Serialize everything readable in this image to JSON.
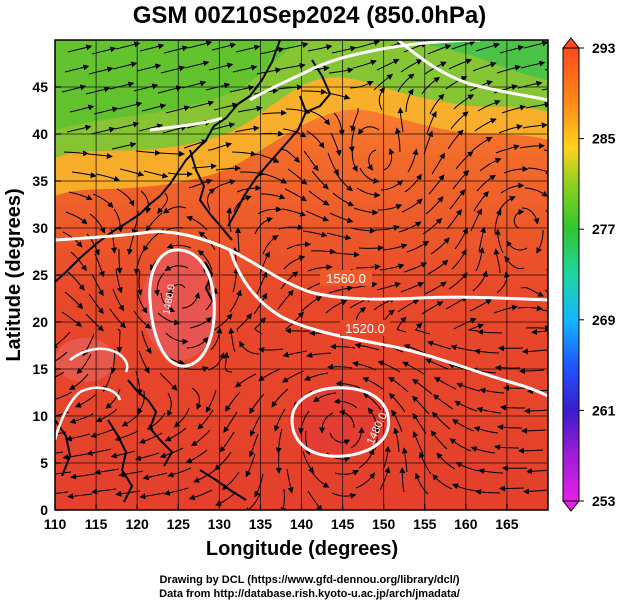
{
  "title": "GSM 00Z10Sep2024 (850.0hPa)",
  "map": {
    "x_axis_label": "Longitude (degrees)",
    "y_axis_label": "Latitude  (degrees)",
    "x_range": [
      110,
      170
    ],
    "y_range": [
      0,
      50
    ],
    "x_ticks": [
      "110",
      "115",
      "120",
      "125",
      "130",
      "135",
      "140",
      "145",
      "150",
      "155",
      "160",
      "165"
    ],
    "y_ticks": [
      "0",
      "5",
      "10",
      "15",
      "20",
      "25",
      "30",
      "35",
      "40",
      "45"
    ],
    "grid": true,
    "contour_labels": [
      "1560.0",
      "1520.0",
      "1480.0",
      "1480.0"
    ],
    "field": "temperature",
    "overlays": [
      "geopotential height contours",
      "wind streamlines",
      "coastlines"
    ]
  },
  "colorbar": {
    "ticks": [
      "293",
      "285",
      "277",
      "269",
      "261",
      "253"
    ],
    "range": [
      253,
      293
    ],
    "colors": [
      "#e81fe8",
      "#3a1ccc",
      "#1f57ff",
      "#13b8ff",
      "#1fd6a2",
      "#2fc62f",
      "#8fd11f",
      "#ffd21c",
      "#ff8a1a",
      "#ff4a1a",
      "#e23a32"
    ]
  },
  "credits": {
    "line1": "Drawing by DCL (https://www.gfd-dennou.org/library/dcl/)",
    "line2": "Data from http://database.rish.kyoto-u.ac.jp/arch/jmadata/"
  }
}
